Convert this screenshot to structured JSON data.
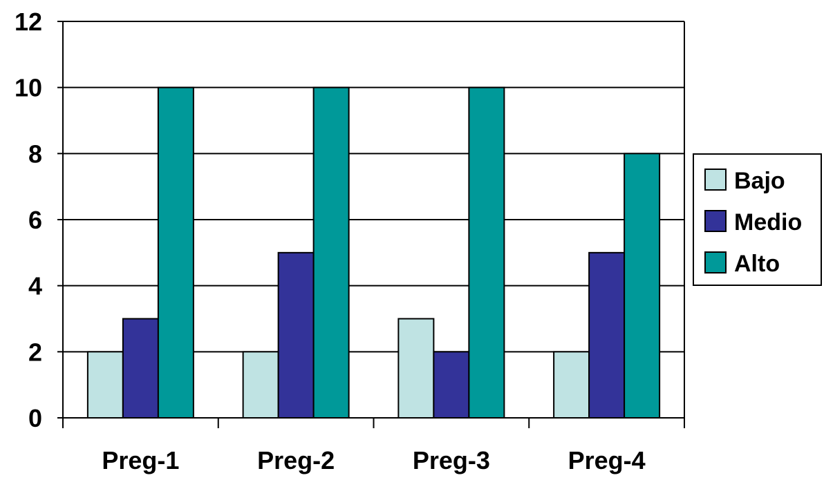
{
  "chart_data": {
    "type": "bar",
    "title": "",
    "xlabel": "",
    "ylabel": "",
    "categories": [
      "Preg-1",
      "Preg-2",
      "Preg-3",
      "Preg-4"
    ],
    "series": [
      {
        "name": "Bajo",
        "values": [
          2,
          2,
          3,
          2
        ],
        "color": "#bfe3e3"
      },
      {
        "name": "Medio",
        "values": [
          3,
          5,
          2,
          5
        ],
        "color": "#333399"
      },
      {
        "name": "Alto",
        "values": [
          10,
          10,
          10,
          8
        ],
        "color": "#009999"
      }
    ],
    "ylim": [
      0,
      12
    ],
    "yticks": [
      "0",
      "2",
      "4",
      "6",
      "8",
      "10",
      "12"
    ],
    "grid": true,
    "legend_position": "right"
  }
}
